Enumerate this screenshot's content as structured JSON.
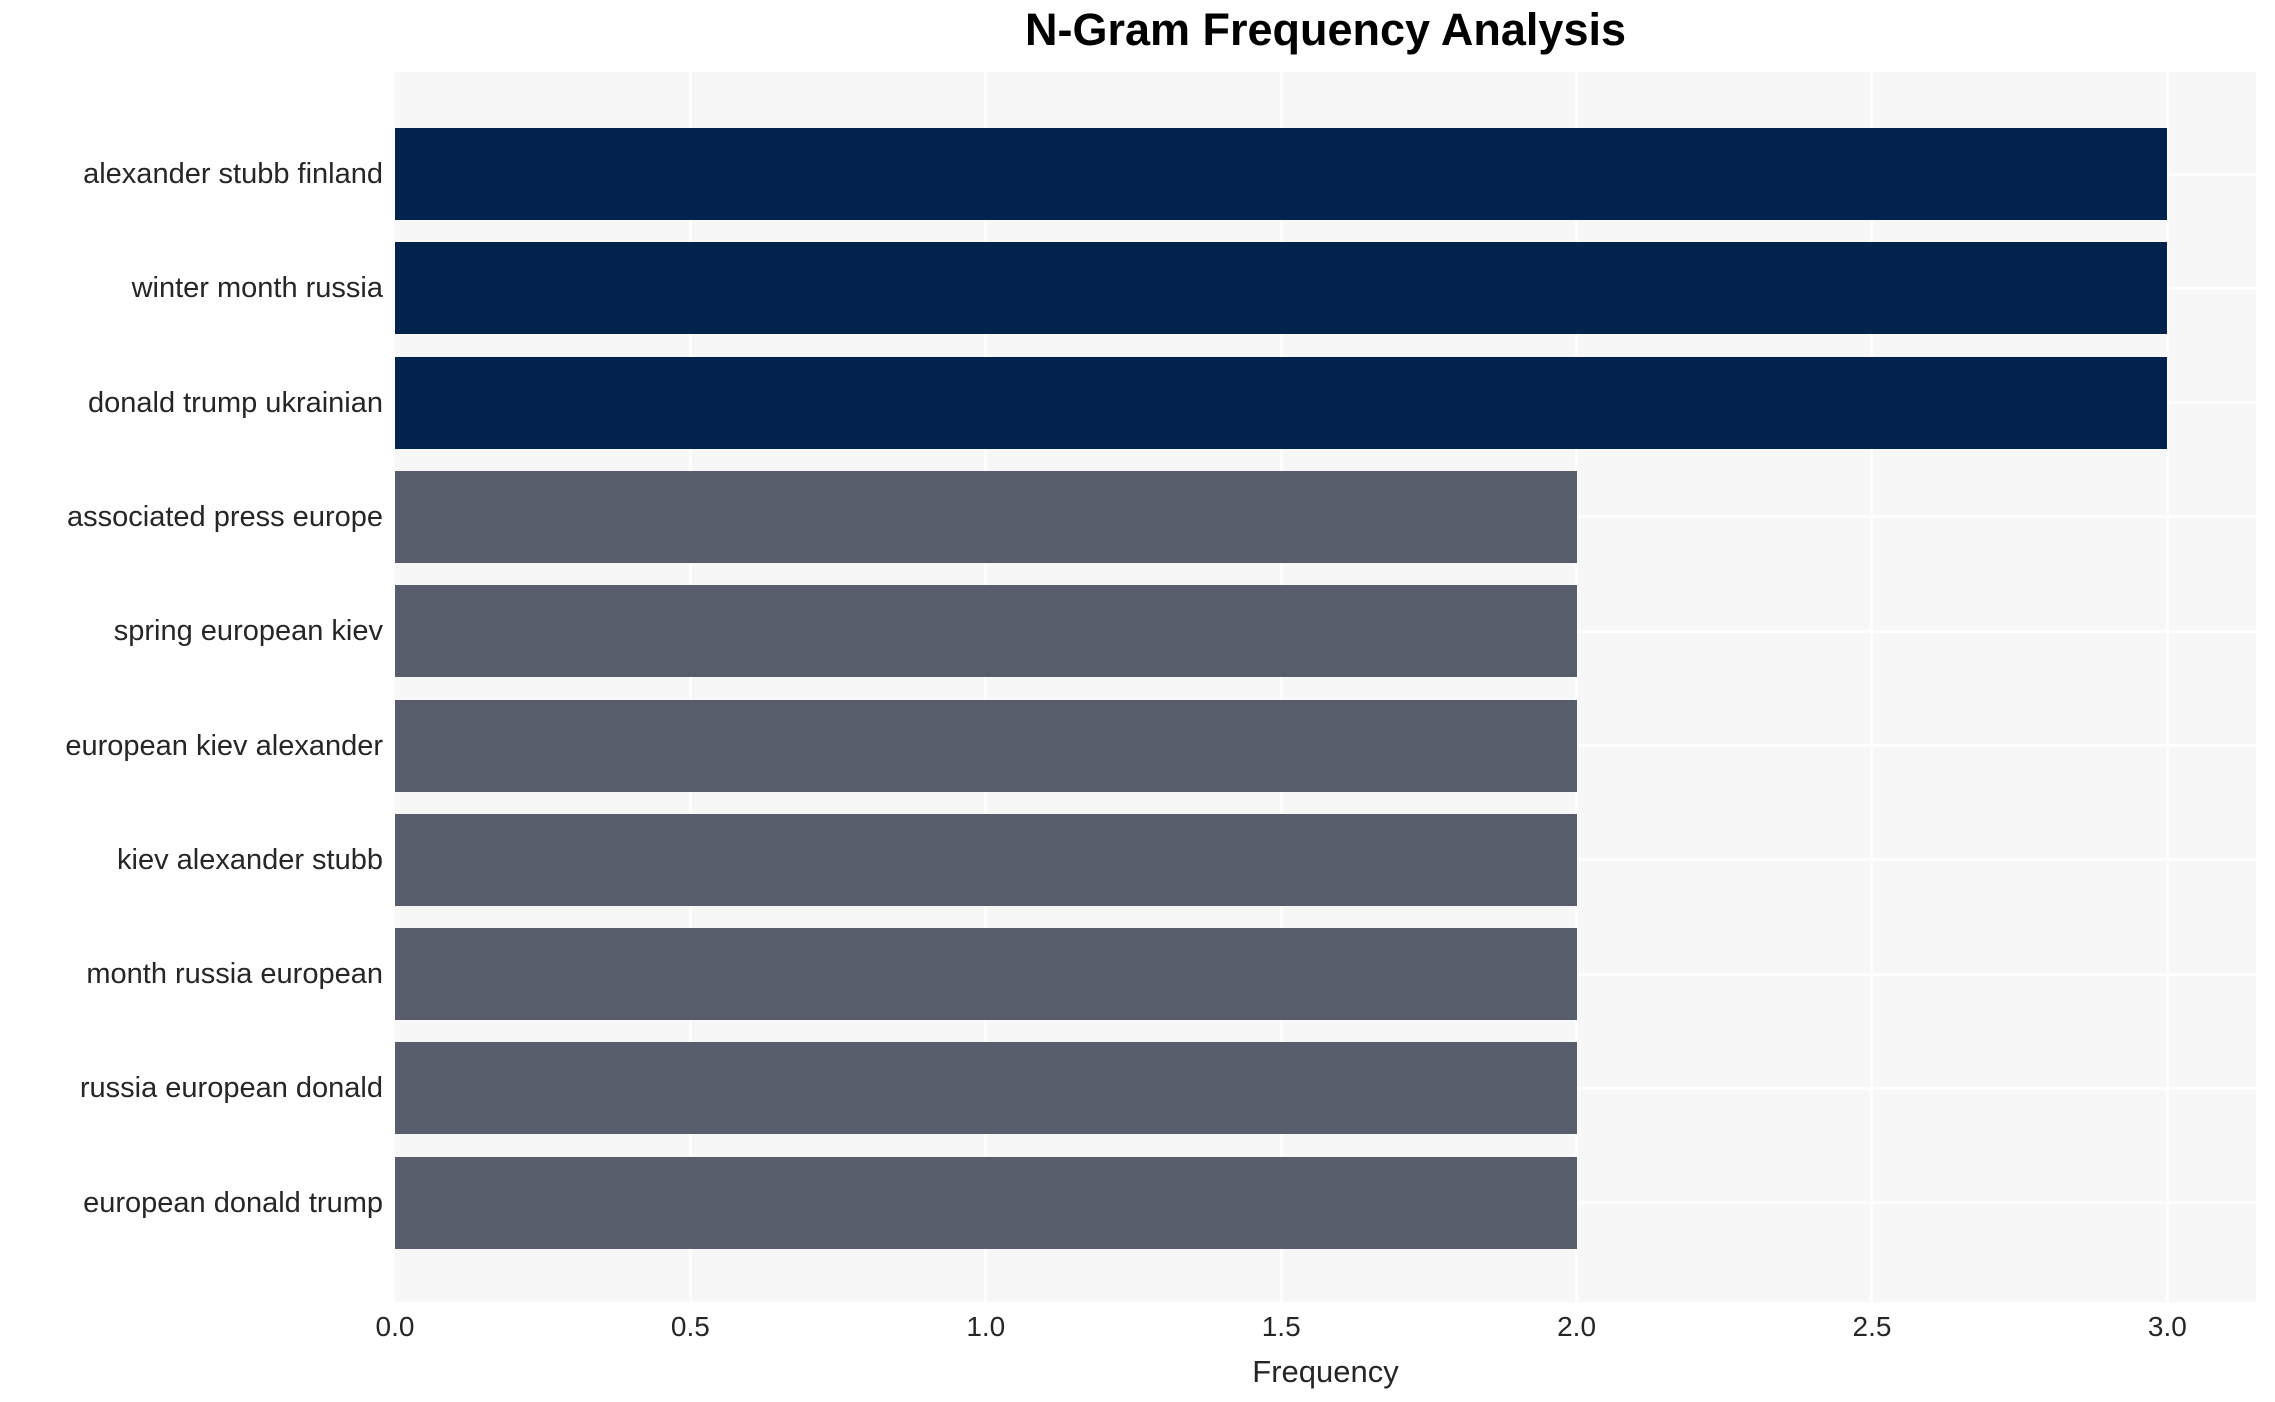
{
  "chart_data": {
    "type": "bar",
    "orientation": "horizontal",
    "title": "N-Gram Frequency Analysis",
    "xlabel": "Frequency",
    "ylabel": "",
    "categories": [
      "alexander stubb finland",
      "winter month russia",
      "donald trump ukrainian",
      "associated press europe",
      "spring european kiev",
      "european kiev alexander",
      "kiev alexander stubb",
      "month russia european",
      "russia european donald",
      "european donald trump"
    ],
    "values": [
      3,
      3,
      3,
      2,
      2,
      2,
      2,
      2,
      2,
      2
    ],
    "xlim": [
      0,
      3.15
    ],
    "xtick_values": [
      0,
      0.5,
      1,
      1.5,
      2,
      2.5,
      3
    ],
    "xtick_labels": [
      "0.0",
      "0.5",
      "1.0",
      "1.5",
      "2.0",
      "2.5",
      "3.0"
    ],
    "grid": true,
    "legend_position": "none",
    "bar_height_fraction": 0.8,
    "colors": {
      "bar_high": "#02234e",
      "bar_low": "#575d6b",
      "plot_background": "#f7f7f7",
      "grid_line": "#fefefe",
      "figure_background": "#ffffff",
      "title_text": "#000000",
      "label_text": "#262626"
    },
    "bar_colors": [
      "#02234e",
      "#02234e",
      "#02234e",
      "#575d6b",
      "#575d6b",
      "#575d6b",
      "#575d6b",
      "#575d6b",
      "#575d6b",
      "#575d6b"
    ]
  }
}
